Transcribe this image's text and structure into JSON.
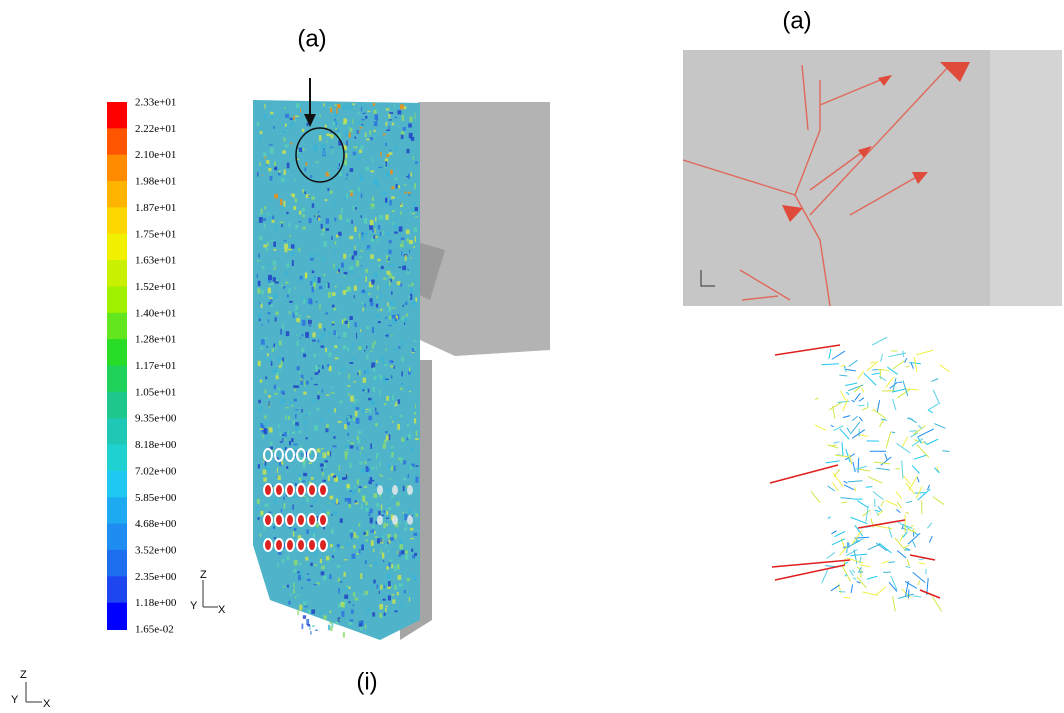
{
  "labels": {
    "left_marker": "(a)",
    "right_marker": "(a)",
    "caption": "(i)"
  },
  "colorbar": {
    "labels": [
      "2.33e+01",
      "2.22e+01",
      "2.10e+01",
      "1.98e+01",
      "1.87e+01",
      "1.75e+01",
      "1.63e+01",
      "1.52e+01",
      "1.40e+01",
      "1.28e+01",
      "1.17e+01",
      "1.05e+01",
      "9.35e+00",
      "8.18e+00",
      "7.02e+00",
      "5.85e+00",
      "4.68e+00",
      "3.52e+00",
      "2.35e+00",
      "1.18e+00",
      "1.65e-02"
    ]
  },
  "axes": {
    "z": "Z",
    "y": "Y",
    "x": "X"
  }
}
